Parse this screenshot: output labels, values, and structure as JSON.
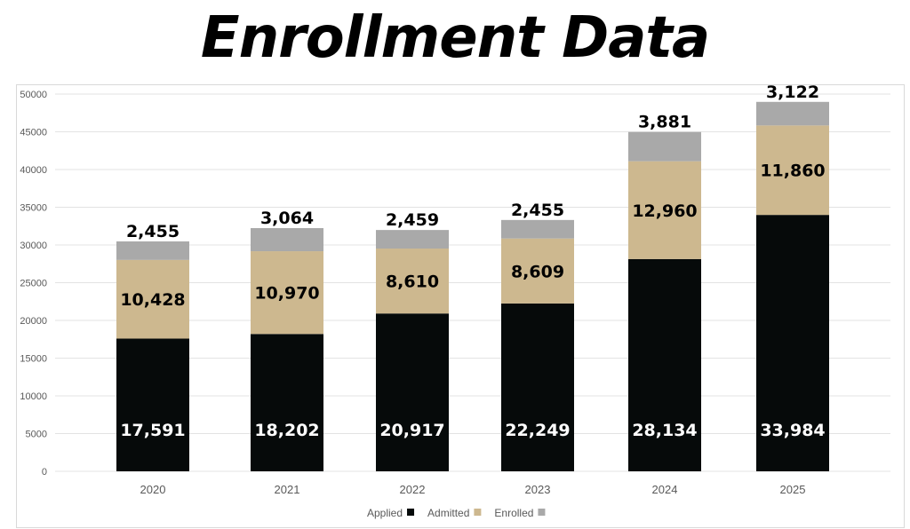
{
  "title": "Enrollment Data",
  "chart_data": {
    "type": "bar",
    "stacked": true,
    "title": "Enrollment Data",
    "categories": [
      "2020",
      "2021",
      "2022",
      "2023",
      "2024",
      "2025"
    ],
    "series": [
      {
        "name": "Applied",
        "color": "#060a0a",
        "label_color": "#ffffff",
        "values": [
          17591,
          18202,
          20917,
          22249,
          28134,
          33984
        ],
        "labels": [
          "17,591",
          "18,202",
          "20,917",
          "22,249",
          "28,134",
          "33,984"
        ]
      },
      {
        "name": "Admitted",
        "color": "#cdb88f",
        "label_color": "#000000",
        "values": [
          10428,
          10970,
          8610,
          8609,
          12960,
          11860
        ],
        "labels": [
          "10,428",
          "10,970",
          "8,610",
          "8,609",
          "12,960",
          "11,860"
        ]
      },
      {
        "name": "Enrolled",
        "color": "#a9a9a9",
        "label_color": "#000000",
        "values": [
          2455,
          3064,
          2459,
          2455,
          3881,
          3122
        ],
        "labels": [
          "2,455",
          "3,064",
          "2,459",
          "2,455",
          "3,881",
          "3,122"
        ]
      }
    ],
    "xlabel": "",
    "ylabel": "",
    "ylim": [
      0,
      50000
    ],
    "yticks": [
      "0",
      "5000",
      "10000",
      "15000",
      "20000",
      "25000",
      "30000",
      "35000",
      "40000",
      "45000",
      "50000"
    ],
    "grid": true,
    "legend": "bottom"
  }
}
